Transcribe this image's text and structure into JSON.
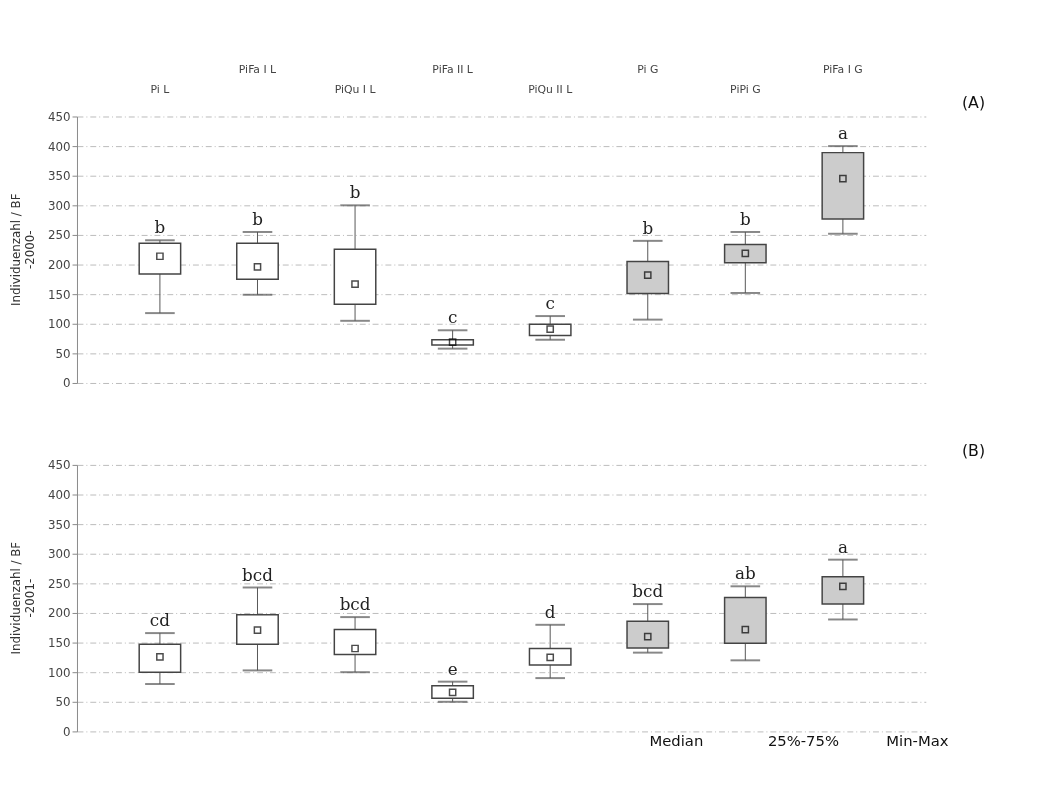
{
  "chart_data": [
    {
      "type": "box",
      "ylabel": "Individuenzahl / BF\n-2000-",
      "categories": [
        "Pi L",
        "PiFa I L",
        "PiQu I L",
        "PiFa II L",
        "PiQu II L",
        "Pi G",
        "PiPi G",
        "PiFa I G"
      ],
      "boxes": [
        {
          "low": 118,
          "q1": 184,
          "median": 214,
          "q3": 236,
          "high": 241
        },
        {
          "low": 149,
          "q1": 175,
          "median": 196,
          "q3": 236,
          "high": 255
        },
        {
          "low": 105,
          "q1": 133,
          "median": 167,
          "q3": 226,
          "high": 300
        },
        {
          "low": 58,
          "q1": 64,
          "median": 69,
          "q3": 73,
          "high": 89
        },
        {
          "low": 73,
          "q1": 80,
          "median": 91,
          "q3": 99,
          "high": 113
        },
        {
          "low": 107,
          "q1": 151,
          "median": 182,
          "q3": 205,
          "high": 240
        },
        {
          "low": 152,
          "q1": 203,
          "median": 219,
          "q3": 234,
          "high": 255
        },
        {
          "low": 252,
          "q1": 277,
          "median": 345,
          "q3": 389,
          "high": 400
        }
      ],
      "colors": [
        "#ffffff",
        "#ffffff",
        "#ffffff",
        "#ffffff",
        "#ffffff",
        "#cccccc",
        "#cccccc",
        "#cccccc"
      ],
      "marker": "square",
      "ylim": [
        0,
        450
      ],
      "yticks": [
        0,
        50,
        100,
        150,
        200,
        250,
        300,
        350,
        400,
        450
      ],
      "grid": "y",
      "annotations": [
        "(A)",
        {
          "text": "b",
          "x": "Pi L",
          "y": 241
        },
        {
          "text": "b",
          "x": "PiFa I L",
          "y": 255
        },
        {
          "text": "b",
          "x": "PiQu I L",
          "y": 300
        },
        {
          "text": "c",
          "x": "PiFa II L",
          "y": 89
        },
        {
          "text": "c",
          "x": "PiQu II L",
          "y": 113
        },
        {
          "text": "b",
          "x": "Pi G",
          "y": 240
        },
        {
          "text": "b",
          "x": "PiPi G",
          "y": 255
        },
        {
          "text": "a",
          "x": "PiFa I G",
          "y": 400
        }
      ]
    },
    {
      "type": "box",
      "ylabel": "Individuenzahl / BF\n-2001-",
      "tick_labels": "y",
      "categories": [
        "Pi L",
        "PiFa I L",
        "PiQu I L",
        "PiFa II L",
        "PiQu II L",
        "Pi G",
        "PiPi G",
        "PiFa I G"
      ],
      "boxes": [
        {
          "low": 80,
          "q1": 100,
          "median": 126,
          "q3": 147,
          "high": 166
        },
        {
          "low": 103,
          "q1": 147,
          "median": 171,
          "q3": 197,
          "high": 243
        },
        {
          "low": 100,
          "q1": 130,
          "median": 140,
          "q3": 172,
          "high": 193
        },
        {
          "low": 50,
          "q1": 56,
          "median": 66,
          "q3": 77,
          "high": 84
        },
        {
          "low": 90,
          "q1": 112,
          "median": 125,
          "q3": 140,
          "high": 180
        },
        {
          "low": 133,
          "q1": 141,
          "median": 160,
          "q3": 186,
          "high": 215
        },
        {
          "low": 120,
          "q1": 149,
          "median": 172,
          "q3": 226,
          "high": 245
        },
        {
          "low": 189,
          "q1": 215,
          "median": 245,
          "q3": 261,
          "high": 290
        }
      ],
      "colors": [
        "#ffffff",
        "#ffffff",
        "#ffffff",
        "#ffffff",
        "#ffffff",
        "#cccccc",
        "#cccccc",
        "#cccccc"
      ],
      "marker": "square",
      "ylim": [
        0,
        450
      ],
      "yticks": [
        0,
        50,
        100,
        150,
        200,
        250,
        300,
        350,
        400,
        450
      ],
      "grid": "y",
      "annotations": [
        "(B)",
        "Median",
        "25%-75%",
        "Min-Max",
        {
          "text": "cd",
          "x": "Pi L",
          "y": 166
        },
        {
          "text": "bcd",
          "x": "PiFa I L",
          "y": 243
        },
        {
          "text": "bcd",
          "x": "PiQu I L",
          "y": 193
        },
        {
          "text": "e",
          "x": "PiFa II L",
          "y": 84
        },
        {
          "text": "d",
          "x": "PiQu II L",
          "y": 180
        },
        {
          "text": "bcd",
          "x": "Pi G",
          "y": 215
        },
        {
          "text": "ab",
          "x": "PiPi G",
          "y": 245
        },
        {
          "text": "a",
          "x": "PiFa I G",
          "y": 290
        }
      ]
    }
  ]
}
